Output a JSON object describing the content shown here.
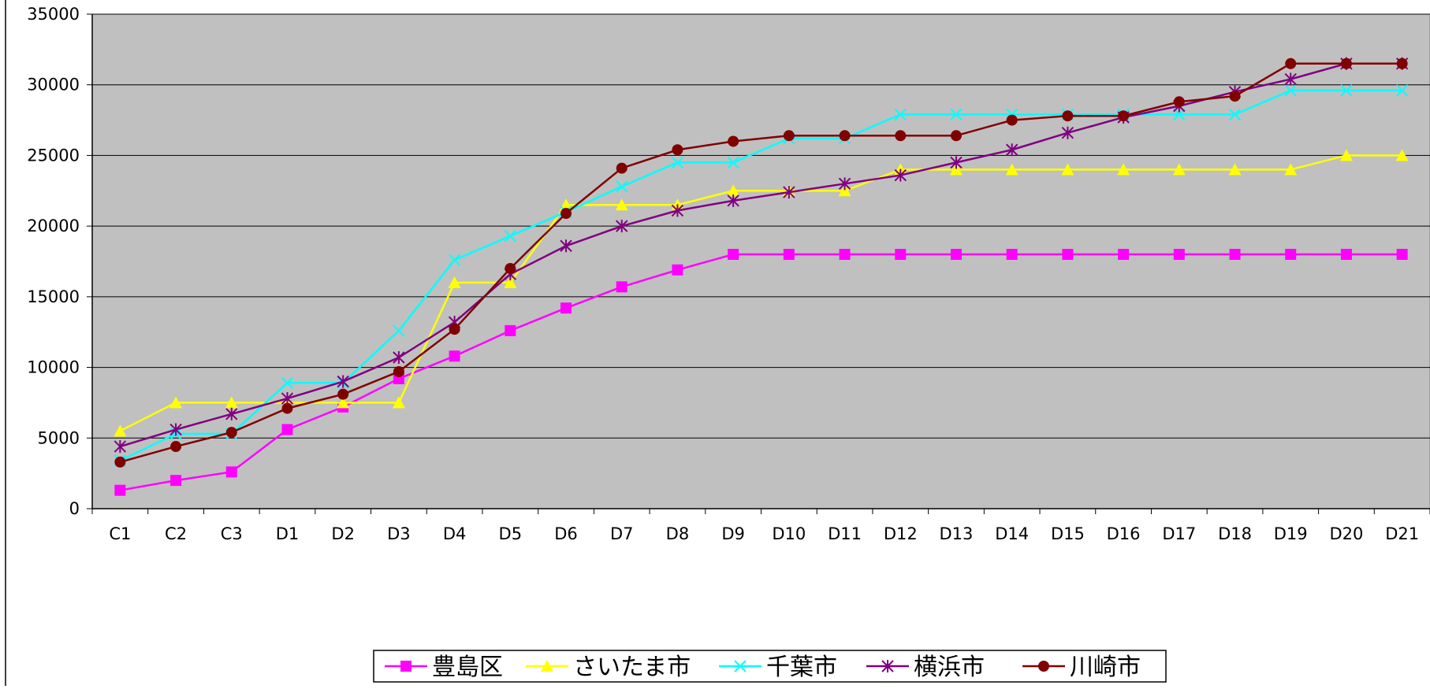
{
  "chart_data": {
    "type": "line",
    "title": "",
    "xlabel": "",
    "ylabel": "",
    "ylim": [
      0,
      35000
    ],
    "yticks": [
      0,
      5000,
      10000,
      15000,
      20000,
      25000,
      30000,
      35000
    ],
    "grid": true,
    "legend_position": "bottom",
    "plot_background": "#c0c0c0",
    "categories": [
      "C1",
      "C2",
      "C3",
      "D1",
      "D2",
      "D3",
      "D4",
      "D5",
      "D6",
      "D7",
      "D8",
      "D9",
      "D10",
      "D11",
      "D12",
      "D13",
      "D14",
      "D15",
      "D16",
      "D17",
      "D18",
      "D19",
      "D20",
      "D21"
    ],
    "series": [
      {
        "name": "豊島区",
        "color": "#ff00ff",
        "marker": "square",
        "values": [
          1300,
          2000,
          2600,
          5600,
          7200,
          9200,
          10800,
          12600,
          14200,
          15700,
          16900,
          18000,
          18000,
          18000,
          18000,
          18000,
          18000,
          18000,
          18000,
          18000,
          18000,
          18000,
          18000,
          18000
        ]
      },
      {
        "name": "さいたま市",
        "color": "#ffff00",
        "marker": "triangle",
        "values": [
          5500,
          7500,
          7500,
          7500,
          7500,
          7500,
          16000,
          16000,
          21500,
          21500,
          21500,
          22500,
          22500,
          22500,
          24000,
          24000,
          24000,
          24000,
          24000,
          24000,
          24000,
          24000,
          25000,
          25000
        ]
      },
      {
        "name": "千葉市",
        "color": "#00ffff",
        "marker": "x",
        "values": [
          3400,
          5300,
          5300,
          8900,
          8900,
          12600,
          17600,
          19300,
          21000,
          22800,
          24500,
          24500,
          26200,
          26200,
          27900,
          27900,
          27900,
          27900,
          27900,
          27900,
          27900,
          29600,
          29600,
          29600
        ]
      },
      {
        "name": "横浜市",
        "color": "#800080",
        "marker": "asterisk",
        "values": [
          4400,
          5600,
          6700,
          7800,
          9000,
          10700,
          13200,
          16600,
          18600,
          20000,
          21100,
          21800,
          22400,
          23000,
          23600,
          24500,
          25400,
          26600,
          27700,
          28500,
          29500,
          30400,
          31500,
          31500
        ]
      },
      {
        "name": "川崎市",
        "color": "#800000",
        "marker": "circle",
        "values": [
          3300,
          4400,
          5400,
          7100,
          8100,
          9700,
          12700,
          17000,
          20900,
          24100,
          25400,
          26000,
          26400,
          26400,
          26400,
          26400,
          27500,
          27800,
          27800,
          28800,
          29200,
          31500,
          31500,
          31500
        ]
      }
    ]
  }
}
